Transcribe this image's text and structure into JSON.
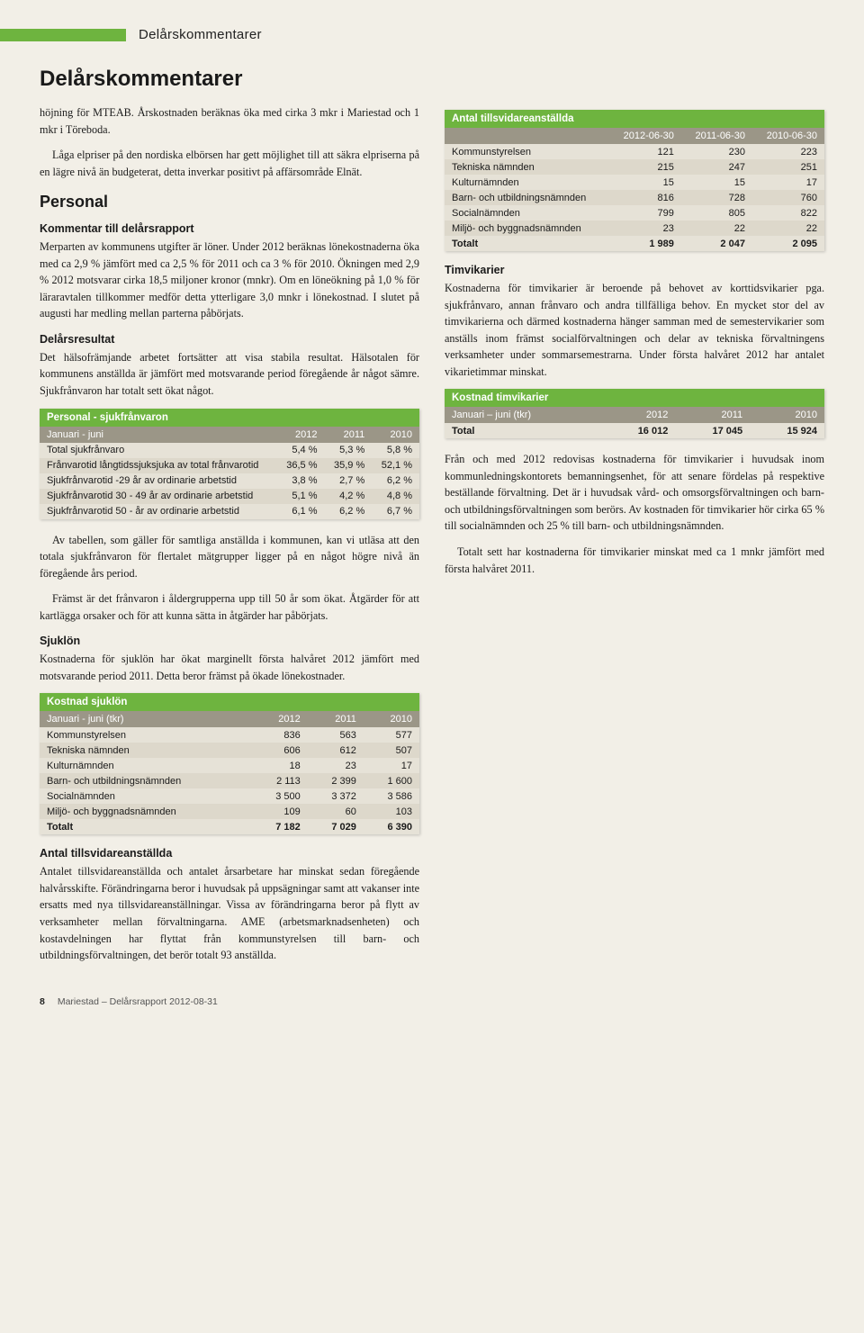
{
  "header_tab_label": "Delårskommentarer",
  "page_title": "Delårskommentarer",
  "intro": {
    "p1": "höjning för MTEAB. Årskostnaden beräknas öka med cirka 3 mkr i Mariestad och 1 mkr i Töreboda.",
    "p2": "Låga elpriser på den nordiska elbörsen har gett möjlighet till att säkra elpriserna på en lägre nivå än budgeterat, detta inverkar positivt på affärsområde Elnät."
  },
  "personal": {
    "heading": "Personal",
    "kommentar_h": "Kommentar till delårsrapport",
    "kommentar_p": "Merparten av kommunens utgifter är löner. Under 2012 beräknas lönekostnaderna öka med ca 2,9 % jämfört med ca 2,5 % för 2011 och ca 3 % för 2010. Ökningen med 2,9 % 2012 motsvarar cirka 18,5 miljoner kronor (mnkr). Om en löneökning på 1,0 % för läraravtalen tillkommer medför detta ytterligare 3,0 mnkr i lönekostnad. I slutet på augusti har medling mellan parterna påbörjats.",
    "resultat_h": "Delårsresultat",
    "resultat_p": "Det hälsofrämjande arbetet fortsätter att visa stabila resultat. Hälsotalen för kommunens anställda är jämfört med motsvarande period föregående år något sämre. Sjukfrånvaron har totalt sett ökat något."
  },
  "sjukfranvaron_table": {
    "title": "Personal - sjukfrånvaron",
    "sub_label": "Januari - juni",
    "cols": [
      "2012",
      "2011",
      "2010"
    ],
    "rows": [
      [
        "Total sjukfrånvaro",
        "5,4 %",
        "5,3 %",
        "5,8 %"
      ],
      [
        "Frånvarotid långtidssjuksjuka av total frånvarotid",
        "36,5 %",
        "35,9 %",
        "52,1 %"
      ],
      [
        "Sjukfrånvarotid -29 år av ordinarie arbetstid",
        "3,8 %",
        "2,7 %",
        "6,2 %"
      ],
      [
        "Sjukfrånvarotid 30 - 49 år av ordinarie arbetstid",
        "5,1 %",
        "4,2 %",
        "4,8 %"
      ],
      [
        "Sjukfrånvarotid 50 - år av ordinarie arbetstid",
        "6,1 %",
        "6,2 %",
        "6,7 %"
      ]
    ]
  },
  "after_sjuk": {
    "p1": "Av tabellen, som gäller för samtliga anställda i kommunen, kan vi utläsa att den totala sjukfrånvaron för flertalet mätgrupper ligger på en något högre nivå än föregående års period.",
    "p2": "Främst är det frånvaron i åldergrupperna upp till 50 år som ökat. Åtgärder för att kartlägga orsaker och för att kunna sätta in åtgärder har påbörjats."
  },
  "sjuklon": {
    "heading": "Sjuklön",
    "p": "Kostnaderna för sjuklön har ökat marginellt första halvåret 2012 jämfört med motsvarande period 2011. Detta beror främst på ökade lönekostnader."
  },
  "kostnad_sjuklon_table": {
    "title": "Kostnad sjuklön",
    "sub_label": "Januari - juni (tkr)",
    "cols": [
      "2012",
      "2011",
      "2010"
    ],
    "rows": [
      [
        "Kommunstyrelsen",
        "836",
        "563",
        "577"
      ],
      [
        "Tekniska nämnden",
        "606",
        "612",
        "507"
      ],
      [
        "Kulturnämnden",
        "18",
        "23",
        "17"
      ],
      [
        "Barn- och utbildningsnämnden",
        "2 113",
        "2 399",
        "1 600"
      ],
      [
        "Socialnämnden",
        "3 500",
        "3 372",
        "3 586"
      ],
      [
        "Miljö- och byggnadsnämnden",
        "109",
        "60",
        "103"
      ],
      [
        "Totalt",
        "7 182",
        "7 029",
        "6 390"
      ]
    ]
  },
  "tillsvidare_left": {
    "heading": "Antal tillsvidareanställda",
    "p": "Antalet tillsvidareanställda och antalet årsarbetare har minskat sedan föregående halvårsskifte. Förändringarna beror i huvudsak på uppsägningar samt att vakanser inte ersatts med nya tillsvidareanställningar. Vissa av förändringarna beror på flytt av verksamheter mellan förvaltningarna. AME (arbetsmarknadsenheten) och kostavdelningen har flyttat från kommunstyrelsen till barn- och utbildningsförvaltningen, det berör totalt 93 anställda."
  },
  "antal_table": {
    "title": "Antal tillsvidareanställda",
    "sub_label": "",
    "cols": [
      "2012-06-30",
      "2011-06-30",
      "2010-06-30"
    ],
    "rows": [
      [
        "Kommunstyrelsen",
        "121",
        "230",
        "223"
      ],
      [
        "Tekniska nämnden",
        "215",
        "247",
        "251"
      ],
      [
        "Kulturnämnden",
        "15",
        "15",
        "17"
      ],
      [
        "Barn- och utbildningsnämnden",
        "816",
        "728",
        "760"
      ],
      [
        "Socialnämnden",
        "799",
        "805",
        "822"
      ],
      [
        "Miljö- och byggnadsnämnden",
        "23",
        "22",
        "22"
      ],
      [
        "Totalt",
        "1 989",
        "2 047",
        "2 095"
      ]
    ]
  },
  "timvikarier": {
    "heading": "Timvikarier",
    "p": "Kostnaderna för timvikarier är beroende på behovet av korttidsvikarier pga. sjukfrånvaro, annan frånvaro och andra tillfälliga behov. En mycket stor del av timvikarierna och därmed kostnaderna hänger samman med de semestervikarier som anställs inom främst socialförvaltningen och delar av tekniska förvaltningens verksamheter under sommarsemestrarna. Under första halvåret 2012 har antalet vikarietimmar minskat."
  },
  "kostnad_tim_table": {
    "title": "Kostnad timvikarier",
    "sub_label": "Januari – juni (tkr)",
    "cols": [
      "2012",
      "2011",
      "2010"
    ],
    "rows": [
      [
        "Total",
        "16 012",
        "17 045",
        "15 924"
      ]
    ]
  },
  "after_tim": {
    "p1": "Från och med 2012 redovisas kostnaderna för timvikarier i huvudsak inom kommunledningskontorets bemanningsenhet, för att senare fördelas på respektive beställande förvaltning. Det är i huvudsak vård- och omsorgsförvaltningen och barn- och utbildningsförvaltningen som berörs. Av kostnaden för timvikarier hör cirka 65 % till socialnämnden och 25 % till barn- och utbildningsnämnden.",
    "p2": "Totalt sett har kostnaderna för timvikarier minskat med ca 1 mnkr jämfört med första halvåret 2011."
  },
  "footer": {
    "page_num": "8",
    "text": "Mariestad – Delårsrapport 2012-08-31"
  },
  "colors": {
    "green": "#6eb43f",
    "grayhead": "#9b9687",
    "bg": "#f2efe7",
    "tableBg": "#e6e2d7",
    "tableAlt": "#ddd8cb"
  }
}
